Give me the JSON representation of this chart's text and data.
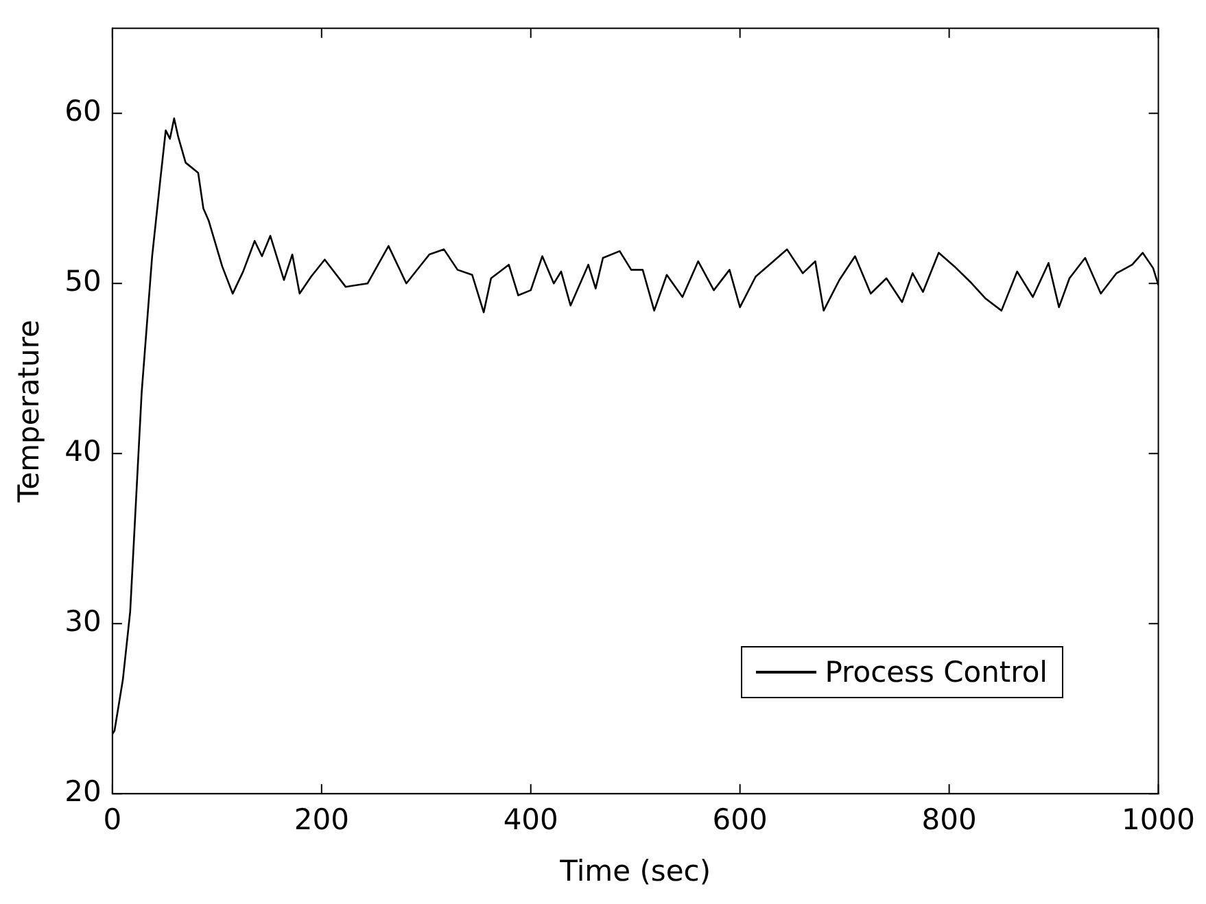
{
  "chart_data": {
    "type": "line",
    "xlabel": "Time (sec)",
    "ylabel": "Temperature",
    "xlim": [
      0,
      1000
    ],
    "ylim": [
      20,
      65
    ],
    "xticks": [
      0,
      200,
      400,
      600,
      800,
      1000
    ],
    "yticks": [
      20,
      30,
      40,
      50,
      60
    ],
    "grid": false,
    "legend": "bottom right",
    "marker": "none",
    "line_style": "solid",
    "series": [
      {
        "name": "Process Control",
        "color": "#000000",
        "x": [
          0,
          2,
          10,
          17,
          28,
          38,
          46,
          51,
          55,
          59,
          63,
          70,
          82,
          87,
          92,
          105,
          115,
          125,
          136,
          143,
          151,
          164,
          172,
          179,
          190,
          203,
          223,
          244,
          264,
          281,
          303,
          317,
          330,
          344,
          355,
          362,
          379,
          388,
          400,
          411,
          422,
          429,
          438,
          455,
          462,
          469,
          485,
          496,
          507,
          518,
          530,
          545,
          560,
          575,
          590,
          600,
          615,
          630,
          645,
          660,
          672,
          680,
          695,
          710,
          725,
          740,
          755,
          765,
          775,
          790,
          805,
          820,
          835,
          850,
          865,
          880,
          895,
          905,
          915,
          930,
          945,
          960,
          975,
          985,
          995,
          1000
        ],
        "values": [
          23.5,
          23.7,
          26.7,
          30.7,
          43.6,
          51.6,
          56.2,
          59,
          58.5,
          59.7,
          58.6,
          57.1,
          56.5,
          54.4,
          53.7,
          51,
          49.4,
          50.7,
          52.5,
          51.6,
          52.8,
          50.2,
          51.7,
          49.4,
          50.4,
          51.4,
          49.8,
          50,
          52.2,
          50,
          51.7,
          52,
          50.8,
          50.5,
          48.3,
          50.3,
          51.1,
          49.3,
          49.6,
          51.6,
          50,
          50.7,
          48.7,
          51.1,
          49.7,
          51.5,
          51.9,
          50.8,
          50.8,
          48.4,
          50.5,
          49.2,
          51.3,
          49.6,
          50.8,
          48.6,
          50.4,
          51.2,
          52,
          50.6,
          51.3,
          48.4,
          50.2,
          51.6,
          49.4,
          50.3,
          48.9,
          50.6,
          49.5,
          51.8,
          51,
          50.1,
          49.1,
          48.4,
          50.7,
          49.2,
          51.2,
          48.6,
          50.3,
          51.5,
          49.4,
          50.6,
          51.1,
          51.8,
          50.9,
          49.9
        ]
      }
    ]
  }
}
